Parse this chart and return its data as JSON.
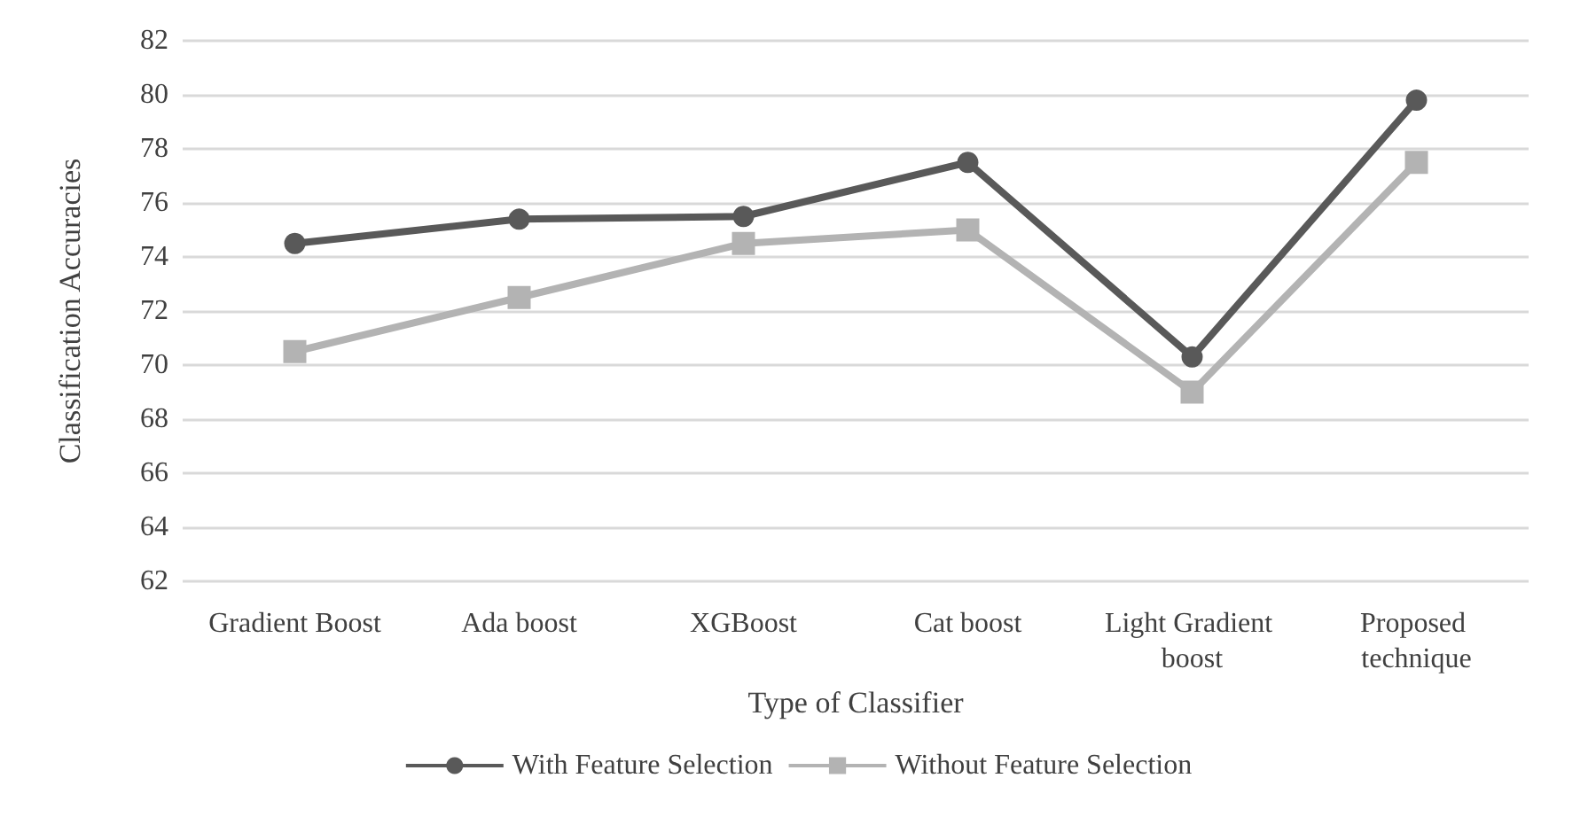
{
  "chart_data": {
    "type": "line",
    "xlabel": "Type of Classifier",
    "ylabel": "Classification Accuracies",
    "categories": [
      "Gradient Boost",
      "Ada boost",
      "XGBoost",
      "Cat boost",
      "Light Gradient boost",
      "Proposed technique"
    ],
    "series": [
      {
        "name": "With Feature Selection",
        "color": "#595959",
        "marker": "circle",
        "values": [
          74.5,
          75.4,
          75.5,
          77.5,
          70.3,
          79.8
        ]
      },
      {
        "name": "Without Feature Selection",
        "color": "#b3b3b3",
        "marker": "square",
        "values": [
          70.5,
          72.5,
          74.5,
          75.0,
          69.0,
          77.5
        ]
      }
    ],
    "ylim": [
      62,
      82
    ],
    "yticks": [
      62,
      64,
      66,
      68,
      70,
      72,
      74,
      76,
      78,
      80,
      82
    ],
    "grid": "y",
    "legend": "bottom",
    "line_style": "solid"
  }
}
